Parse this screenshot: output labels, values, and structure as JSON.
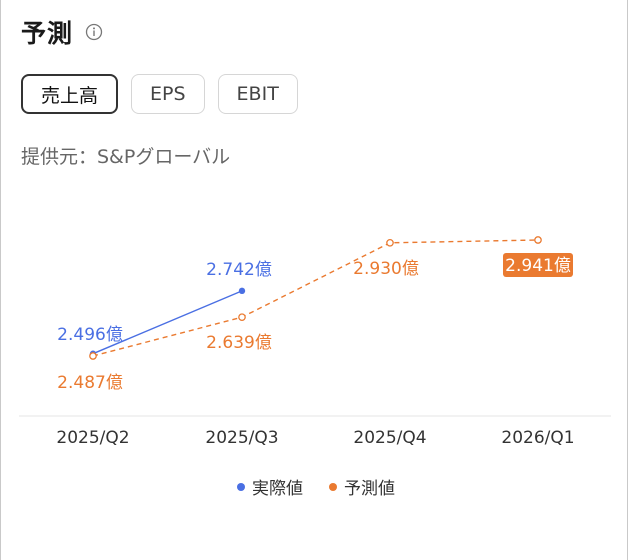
{
  "header": {
    "title": "予測",
    "info_icon": "info-circle-icon"
  },
  "tabs": [
    {
      "label": "売上高",
      "active": true
    },
    {
      "label": "EPS",
      "active": false
    },
    {
      "label": "EBIT",
      "active": false
    }
  ],
  "source": "提供元：S&Pグローバル",
  "colors": {
    "actual": "#4a6fe3",
    "forecast": "#ea7a30",
    "grid": "#e6e6e6"
  },
  "chart_data": {
    "type": "line",
    "categories": [
      "2025/Q2",
      "2025/Q3",
      "2025/Q4",
      "2026/Q1"
    ],
    "unit": "億",
    "series": [
      {
        "name": "実際値",
        "values": [
          2.496,
          2.742,
          null,
          null
        ],
        "labels": [
          "2.496億",
          "2.742億",
          "",
          ""
        ]
      },
      {
        "name": "予測値",
        "values": [
          2.487,
          2.639,
          2.93,
          2.941
        ],
        "labels": [
          "2.487億",
          "2.639億",
          "2.930億",
          "2.941億"
        ],
        "highlight_index": 3
      }
    ],
    "legend_position": "bottom-center"
  }
}
